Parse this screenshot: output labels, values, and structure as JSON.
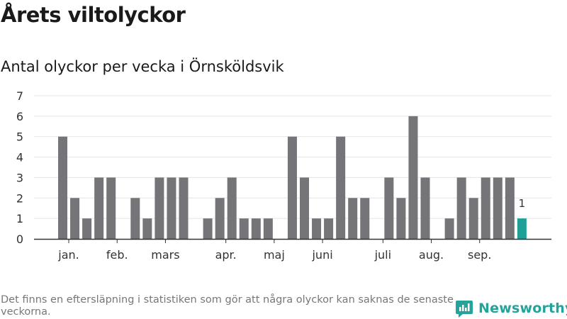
{
  "title": "Årets viltolyckor",
  "subtitle": "Antal olyckor per vecka i Örnsköldsvik",
  "footnote": "Det finns en eftersläpning i statistiken som gör att några olyckor kan saknas de senaste veckorna.",
  "brand": {
    "name": "Newsworthy",
    "color": "#24a39a"
  },
  "chart_data": {
    "type": "bar",
    "x": [
      1,
      2,
      3,
      4,
      5,
      6,
      7,
      8,
      9,
      10,
      11,
      12,
      13,
      14,
      15,
      16,
      17,
      18,
      19,
      20,
      21,
      22,
      23,
      24,
      25,
      26,
      27,
      28,
      29,
      30,
      31,
      32,
      33,
      34,
      35,
      36,
      37,
      38,
      39,
      40
    ],
    "values": [
      5,
      2,
      1,
      3,
      3,
      null,
      2,
      1,
      3,
      3,
      3,
      null,
      1,
      2,
      3,
      1,
      1,
      1,
      null,
      5,
      3,
      1,
      1,
      5,
      2,
      2,
      null,
      3,
      2,
      6,
      3,
      null,
      1,
      3,
      2,
      3,
      3,
      3,
      1,
      null
    ],
    "highlight_index": 38,
    "highlight_label": "1",
    "month_labels": [
      {
        "label": "jan.",
        "x": 1.5
      },
      {
        "label": "feb.",
        "x": 5.5
      },
      {
        "label": "mars",
        "x": 9.5
      },
      {
        "label": "apr.",
        "x": 14.5
      },
      {
        "label": "maj",
        "x": 18.5
      },
      {
        "label": "juni",
        "x": 22.5
      },
      {
        "label": "juli",
        "x": 27.5
      },
      {
        "label": "aug.",
        "x": 31.5
      },
      {
        "label": "sep.",
        "x": 35.5
      }
    ],
    "yticks": [
      0,
      1,
      2,
      3,
      4,
      5,
      6,
      7
    ],
    "ylim": [
      0,
      7
    ],
    "grid": true,
    "colors": {
      "bar": "#757478",
      "highlight": "#1fa097",
      "grid": "#e4e4e4",
      "axis": "#333333"
    }
  }
}
